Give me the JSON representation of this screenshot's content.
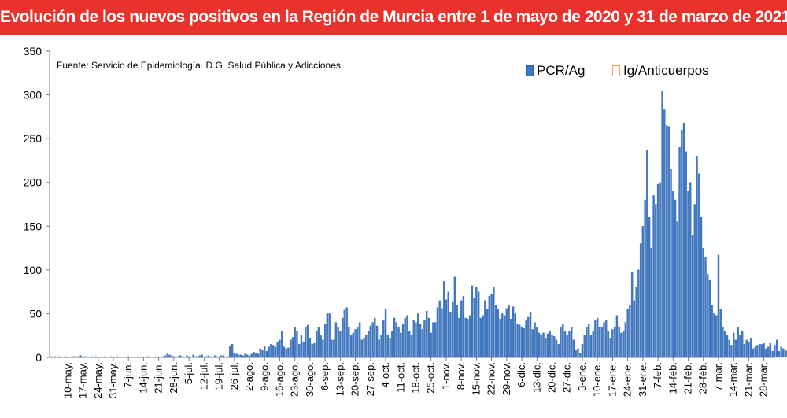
{
  "title": "Evolución de los nuevos positivos en la Región de Murcia entre 1 de mayo de 2020 y 31 de marzo de 2021",
  "colors": {
    "title_bg": "#e8322b",
    "title_fg": "#ffffff",
    "pcr": "#3f79c6",
    "pcr_edge": "#2e5f9e",
    "igg": "#f4a460",
    "axis": "#808080"
  },
  "chart_data": {
    "type": "bar",
    "source": "Fuente: Servicio de Epidemiología. D.G. Salud Pública y Adicciones.",
    "ylim": [
      0,
      350
    ],
    "yticks": [
      0,
      50,
      100,
      150,
      200,
      250,
      300,
      350
    ],
    "grid": false,
    "legend_position": "top-right",
    "x_start_day": 8,
    "xtick_labels": [
      "10-may.",
      "17-may.",
      "24-may.",
      "31-may.",
      "7-jun.",
      "14-jun.",
      "21-jun.",
      "28-jun.",
      "5-jul.",
      "12-jul.",
      "19-jul.",
      "26-jul.",
      "2-ago.",
      "9-ago.",
      "16-ago.",
      "23-ago.",
      "30-ago.",
      "6-sep.",
      "13-sep.",
      "20-sep.",
      "27-sep.",
      "4-oct.",
      "11-oct.",
      "18-oct.",
      "25-oct.",
      "1-nov.",
      "8-nov.",
      "15-nov.",
      "22-nov.",
      "29-nov.",
      "6-dic.",
      "13-dic.",
      "20-dic.",
      "27-dic.",
      "3-ene.",
      "10-ene.",
      "17-ene.",
      "24-ene.",
      "31-ene.",
      "7-feb.",
      "14-feb.",
      "21-feb.",
      "28-feb.",
      "7-mar.",
      "14-mar.",
      "21-mar.",
      "28-mar."
    ],
    "series": [
      {
        "name": "PCR/Ag",
        "color": "#3f79c6",
        "values": [
          1,
          0,
          1,
          0,
          1,
          0,
          0,
          1,
          0,
          0,
          1,
          1,
          0,
          1,
          2,
          0,
          1,
          0,
          0,
          1,
          0,
          1,
          0,
          0,
          0,
          1,
          0,
          0,
          1,
          0,
          0,
          1,
          0,
          0,
          0,
          0,
          1,
          0,
          0,
          0,
          0,
          0,
          1,
          0,
          0,
          1,
          0,
          0,
          0,
          1,
          0,
          0,
          1,
          2,
          4,
          3,
          2,
          1,
          0,
          1,
          2,
          1,
          0,
          2,
          1,
          0,
          3,
          1,
          1,
          2,
          3,
          0,
          1,
          2,
          1,
          0,
          2,
          1,
          0,
          2,
          2,
          0,
          1,
          13,
          15,
          5,
          4,
          3,
          3,
          2,
          4,
          3,
          2,
          4,
          6,
          5,
          4,
          10,
          8,
          13,
          7,
          12,
          15,
          14,
          12,
          18,
          20,
          30,
          12,
          10,
          11,
          20,
          23,
          34,
          30,
          15,
          25,
          18,
          35,
          37,
          22,
          15,
          16,
          30,
          35,
          25,
          20,
          38,
          50,
          50,
          20,
          20,
          40,
          35,
          30,
          45,
          54,
          57,
          35,
          25,
          28,
          32,
          35,
          40,
          20,
          22,
          25,
          30,
          36,
          40,
          45,
          36,
          20,
          25,
          42,
          55,
          25,
          22,
          30,
          45,
          40,
          35,
          28,
          38,
          45,
          48,
          30,
          26,
          42,
          40,
          50,
          38,
          32,
          42,
          53,
          45,
          28,
          40,
          40,
          57,
          65,
          56,
          87,
          66,
          75,
          52,
          63,
          92,
          60,
          45,
          65,
          70,
          45,
          44,
          48,
          82,
          68,
          80,
          75,
          45,
          48,
          65,
          55,
          70,
          72,
          80,
          60,
          55,
          44,
          50,
          48,
          56,
          60,
          44,
          58,
          50,
          38,
          37,
          34,
          33,
          42,
          46,
          52,
          32,
          40,
          35,
          28,
          26,
          28,
          22,
          27,
          30,
          26,
          24,
          20,
          15,
          35,
          38,
          30,
          25,
          30,
          35,
          20,
          8,
          10,
          5,
          15,
          25,
          35,
          38,
          25,
          30,
          42,
          45,
          35,
          35,
          40,
          42,
          30,
          22,
          32,
          35,
          48,
          35,
          28,
          30,
          40,
          55,
          60,
          98,
          65,
          80,
          100,
          130,
          150,
          180,
          237,
          160,
          125,
          185,
          175,
          198,
          200,
          304,
          283,
          265,
          264,
          215,
          190,
          180,
          155,
          240,
          260,
          268,
          235,
          190,
          200,
          140,
          175,
          230,
          210,
          160,
          125,
          115,
          95,
          88,
          60,
          50,
          48,
          117,
          55,
          35,
          30,
          25,
          20,
          14,
          28,
          20,
          35,
          25,
          30,
          15,
          20,
          18,
          22,
          10,
          12,
          14,
          15,
          15,
          16,
          10,
          12,
          16,
          7,
          14,
          20,
          7,
          12,
          10,
          8,
          7,
          12,
          14,
          10,
          14,
          8,
          12,
          4,
          6,
          8,
          6,
          22,
          8,
          10,
          12,
          15,
          8,
          10,
          14,
          7,
          16,
          18,
          6,
          9,
          20,
          5,
          10,
          12,
          8,
          6,
          15,
          9,
          10,
          16,
          7
        ]
      },
      {
        "name": "Ig/Anticuerpos",
        "color": "#f4a460",
        "values": []
      }
    ]
  }
}
